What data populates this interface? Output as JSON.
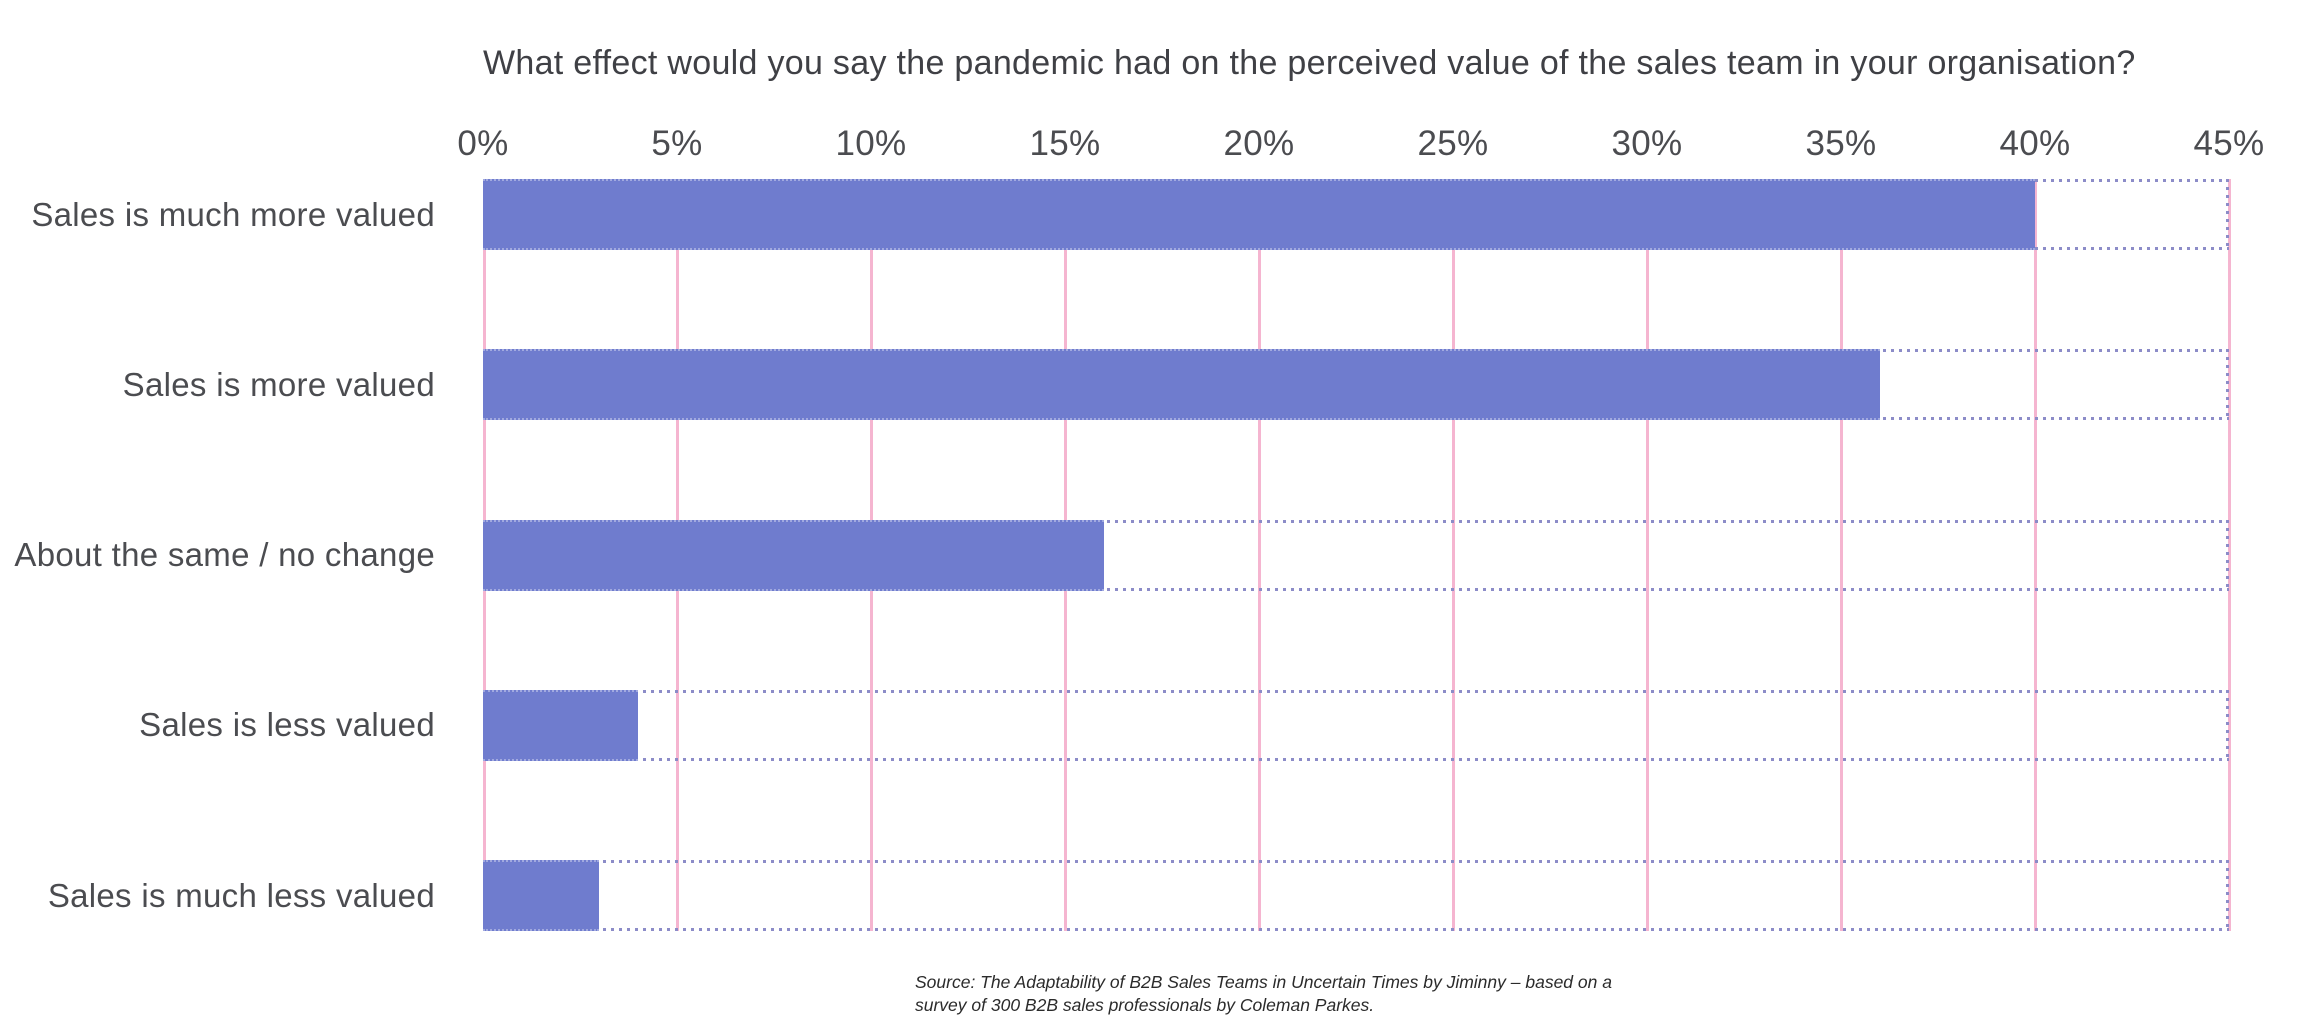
{
  "chart_data": {
    "type": "bar",
    "orientation": "horizontal",
    "title": "What effect would you say the pandemic had on the perceived value of the sales team in your organisation?",
    "categories": [
      "Sales is much more valued",
      "Sales is more valued",
      "About the same / no change",
      "Sales is less valued",
      "Sales is much less valued"
    ],
    "values": [
      40,
      36,
      16,
      4,
      3
    ],
    "unit": "%",
    "xlabel": "",
    "ylabel": "",
    "xlim": [
      0,
      45
    ],
    "x_tick_labels": [
      "0%",
      "5%",
      "10%",
      "15%",
      "20%",
      "25%",
      "30%",
      "35%",
      "40%",
      "45%"
    ],
    "grid": "vertical gridlines at every 5%, dotted full-extent outline per bar row",
    "legend": "none",
    "colors": {
      "bar_fill": "#6F7CCE",
      "gridline_pink": "#F5B5D0",
      "dotted_outline": "#8C8CC8",
      "title_text": "#3F4045",
      "label_text": "#4B4C50"
    }
  },
  "source_note": {
    "line1": "Source: The Adaptability of B2B Sales Teams in Uncertain Times by Jiminny – based on a",
    "line2": "survey of 300 B2B sales professionals by Coleman Parkes."
  }
}
